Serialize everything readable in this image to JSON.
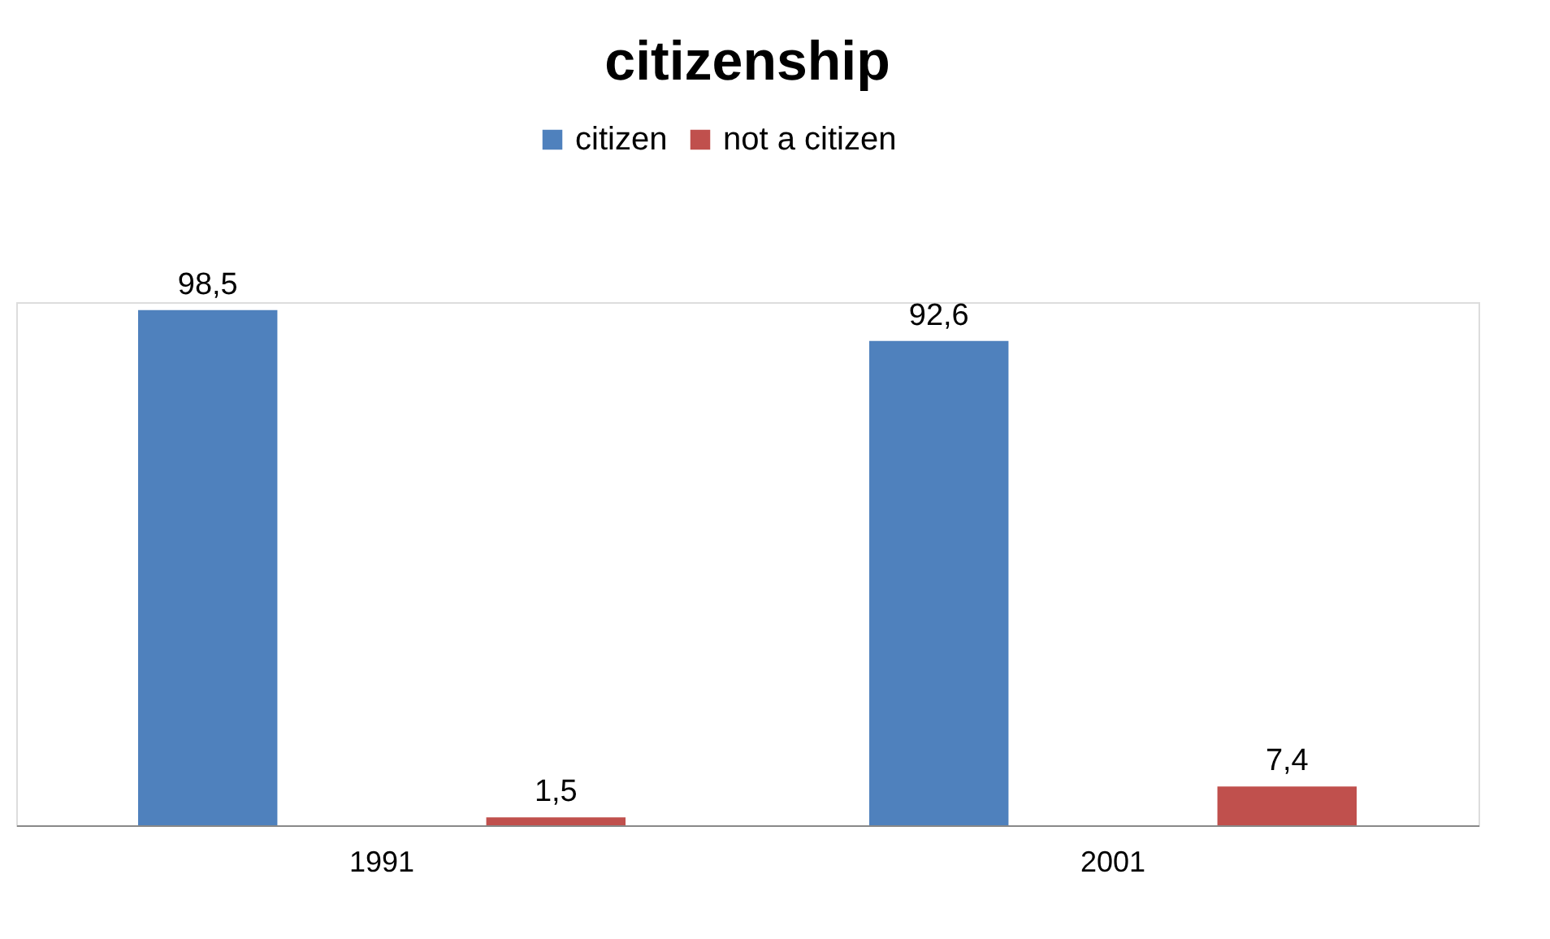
{
  "chart_data": {
    "type": "bar",
    "title": "citizenship",
    "categories": [
      "1991",
      "2001"
    ],
    "series": [
      {
        "name": "citizen",
        "color": "#4f81bd",
        "values": [
          98.5,
          92.6
        ],
        "value_labels": [
          "98,5",
          "92,6"
        ]
      },
      {
        "name": "not a citizen",
        "color": "#c0504d",
        "values": [
          1.5,
          7.4
        ],
        "value_labels": [
          "1,5",
          "7,4"
        ]
      }
    ],
    "legend": "top",
    "tick_labels": "x"
  }
}
